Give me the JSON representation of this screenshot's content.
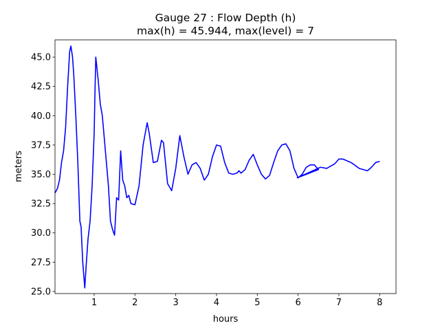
{
  "chart_data": {
    "type": "line",
    "title": "Gauge 27 : Flow Depth (h)",
    "subtitle": "max(h) =  45.944,    max(level) = 7",
    "x_label": "hours",
    "y_label": "meters",
    "color": "#0000ff",
    "x": [
      0.04,
      0.1,
      0.15,
      0.2,
      0.25,
      0.3,
      0.35,
      0.4,
      0.43,
      0.47,
      0.5,
      0.55,
      0.6,
      0.65,
      0.68,
      0.72,
      0.77,
      0.8,
      0.85,
      0.9,
      0.95,
      1.0,
      1.02,
      1.04,
      1.07,
      1.1,
      1.15,
      1.2,
      1.25,
      1.3,
      1.35,
      1.4,
      1.45,
      1.5,
      1.55,
      1.6,
      1.65,
      1.7,
      1.75,
      1.8,
      1.85,
      1.9,
      2.0,
      2.1,
      2.2,
      2.3,
      2.35,
      2.45,
      2.55,
      2.65,
      2.7,
      2.8,
      2.9,
      3.0,
      3.1,
      3.2,
      3.3,
      3.4,
      3.5,
      3.6,
      3.7,
      3.8,
      3.9,
      4.0,
      4.1,
      4.2,
      4.3,
      4.4,
      4.5,
      4.55,
      4.6,
      4.7,
      4.8,
      4.9,
      5.0,
      5.1,
      5.2,
      5.3,
      5.4,
      5.5,
      5.6,
      5.7,
      5.8,
      5.9,
      6.0,
      6.1,
      6.2,
      6.3,
      6.4,
      6.5,
      5.98,
      6.55,
      6.7,
      6.9,
      7.0,
      7.1,
      7.3,
      7.5,
      7.7,
      7.8,
      7.9,
      8.0
    ],
    "values": [
      33.4,
      33.8,
      34.5,
      36.0,
      37.0,
      39.0,
      42.5,
      45.5,
      45.944,
      45.0,
      43.5,
      40.0,
      36.0,
      31.0,
      30.5,
      27.5,
      25.3,
      27.0,
      29.5,
      31.0,
      34.0,
      38.5,
      42.0,
      45.0,
      44.0,
      43.0,
      41.0,
      40.0,
      38.0,
      36.0,
      34.0,
      31.0,
      30.3,
      29.8,
      33.0,
      32.8,
      37.0,
      34.5,
      34.0,
      33.0,
      33.2,
      32.5,
      32.4,
      34.0,
      37.5,
      39.4,
      38.5,
      36.0,
      36.1,
      37.9,
      37.7,
      34.2,
      33.6,
      35.5,
      38.3,
      36.5,
      35.0,
      35.8,
      36.0,
      35.5,
      34.5,
      35.0,
      36.5,
      37.5,
      37.4,
      36.0,
      35.1,
      35.0,
      35.1,
      35.3,
      35.1,
      35.4,
      36.2,
      36.7,
      35.8,
      35.0,
      34.6,
      34.9,
      36.0,
      37.0,
      37.5,
      37.6,
      37.0,
      35.5,
      34.7,
      35.0,
      35.6,
      35.8,
      35.8,
      35.4,
      34.7,
      35.6,
      35.5,
      35.9,
      36.3,
      36.3,
      36.0,
      35.5,
      35.3,
      35.6,
      36.0,
      36.1
    ],
    "xlim": [
      0.04,
      8.4
    ],
    "ylim": [
      24.82,
      46.47
    ],
    "xticks": [
      1,
      2,
      3,
      4,
      5,
      6,
      7,
      8
    ],
    "yticks": [
      {
        "value": 25,
        "label": "25.0"
      },
      27.5,
      {
        "value": 30,
        "label": "30.0"
      },
      32.5,
      {
        "value": 35,
        "label": "35.0"
      },
      37.5,
      {
        "value": 40,
        "label": "40.0"
      },
      42.5,
      {
        "value": 45,
        "label": "45.0"
      }
    ]
  }
}
